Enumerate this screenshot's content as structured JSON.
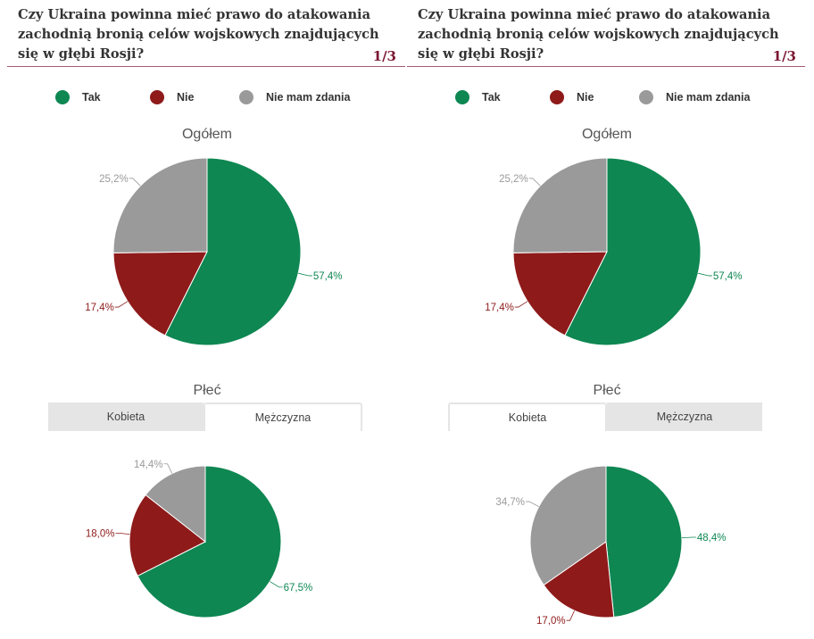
{
  "colors": {
    "tak": "#0e8752",
    "nie": "#8e1a1a",
    "brak": "#9a9a9a",
    "accent": "#7a1733"
  },
  "panels": [
    {
      "title": "Czy Ukraina powinna mieć prawo do atakowania zachodnią bronią celów wojskowych znajdujących się w głębi Rosji?",
      "pager": "1/3",
      "legend": [
        {
          "label": "Tak",
          "icon": "green-dot-icon"
        },
        {
          "label": "Nie",
          "icon": "red-dot-icon"
        },
        {
          "label": "Nie mam zdania",
          "icon": "gray-dot-icon"
        }
      ],
      "overall_title": "Ogółem",
      "gender_title": "Płeć",
      "tabs": [
        {
          "label": "Kobieta",
          "active": false
        },
        {
          "label": "Mężczyzna",
          "active": true
        }
      ]
    },
    {
      "title": "Czy Ukraina powinna mieć prawo do atakowania zachodnią bronią celów wojskowych znajdujących się w głębi Rosji?",
      "pager": "1/3",
      "legend": [
        {
          "label": "Tak",
          "icon": "green-dot-icon"
        },
        {
          "label": "Nie",
          "icon": "red-dot-icon"
        },
        {
          "label": "Nie mam zdania",
          "icon": "gray-dot-icon"
        }
      ],
      "overall_title": "Ogółem",
      "gender_title": "Płeć",
      "tabs": [
        {
          "label": "Kobieta",
          "active": true
        },
        {
          "label": "Mężczyzna",
          "active": false
        }
      ]
    }
  ],
  "chart_data": [
    {
      "type": "pie",
      "title": "Ogółem",
      "panel": "left",
      "categories": [
        "Tak",
        "Nie",
        "Nie mam zdania"
      ],
      "values": [
        57.4,
        17.4,
        25.2
      ],
      "labels": [
        "57,4%",
        "17,4%",
        "25,2%"
      ]
    },
    {
      "type": "pie",
      "title": "Płeć — Mężczyzna",
      "panel": "left",
      "categories": [
        "Tak",
        "Nie",
        "Nie mam zdania"
      ],
      "values": [
        67.5,
        18.0,
        14.4
      ],
      "labels": [
        "67,5%",
        "18,0%",
        "14,4%"
      ]
    },
    {
      "type": "pie",
      "title": "Ogółem",
      "panel": "right",
      "categories": [
        "Tak",
        "Nie",
        "Nie mam zdania"
      ],
      "values": [
        57.4,
        17.4,
        25.2
      ],
      "labels": [
        "57,4%",
        "17,4%",
        "25,2%"
      ]
    },
    {
      "type": "pie",
      "title": "Płeć — Kobieta",
      "panel": "right",
      "categories": [
        "Tak",
        "Nie",
        "Nie mam zdania"
      ],
      "values": [
        48.4,
        17.0,
        34.7
      ],
      "labels": [
        "48,4%",
        "17,0%",
        "34,7%"
      ]
    }
  ]
}
